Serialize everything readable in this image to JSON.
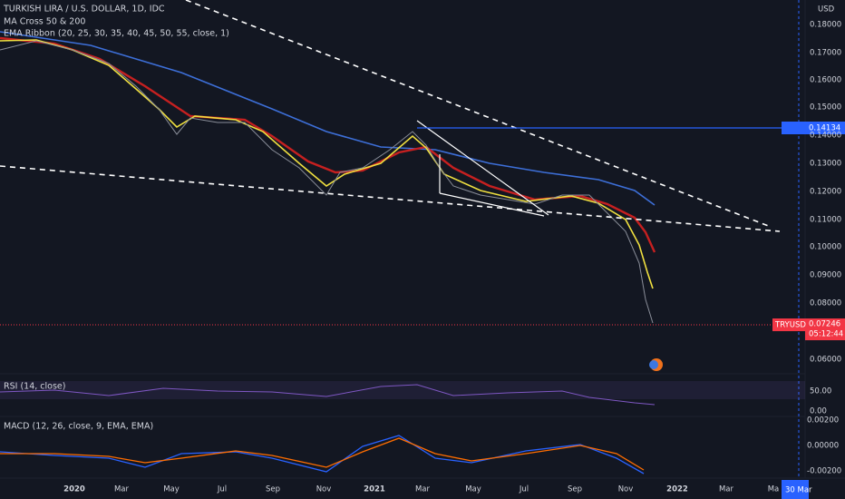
{
  "header": {
    "symbol": "TURKISH LIRA / U.S. DOLLAR, 1D, IDC",
    "indicator_1": "MA Cross 50 & 200",
    "indicator_2": "EMA Ribbon (20, 25, 30, 35, 40, 45, 50, 55, close, 1)",
    "currency": "USD"
  },
  "price_axis": [
    "0.18000",
    "0.17000",
    "0.16000",
    "0.15000",
    "0.14000",
    "0.13000",
    "0.12000",
    "0.11000",
    "0.10000",
    "0.09000",
    "0.08000",
    "0.06000"
  ],
  "tags": {
    "level": "0.14134",
    "symbol": "TRYUSD",
    "last": "0.07246",
    "countdown": "05:12:44"
  },
  "rsi": {
    "title": "RSI (14, close)",
    "axis": [
      "50.00",
      "0.00"
    ]
  },
  "macd": {
    "title": "MACD (12, 26, close, 9, EMA, EMA)",
    "axis": [
      "0.00200",
      "0.00000",
      "-0.00200"
    ]
  },
  "time_axis": [
    "2020",
    "Mar",
    "May",
    "Jul",
    "Sep",
    "Nov",
    "2021",
    "Mar",
    "May",
    "Jul",
    "Sep",
    "Nov",
    "2022",
    "Mar",
    "Ma"
  ],
  "cursor_date": "30 Mar"
}
